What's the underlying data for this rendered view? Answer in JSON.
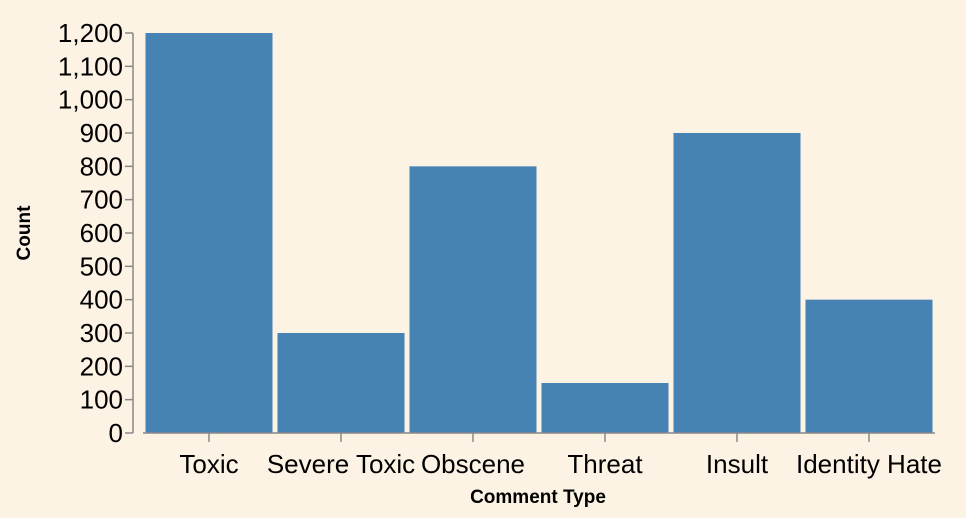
{
  "background": "#fdf3e5",
  "bar_color": "#4682b4",
  "axis_color": "#888888",
  "chart_data": {
    "type": "bar",
    "categories": [
      "Toxic",
      "Severe Toxic",
      "Obscene",
      "Threat",
      "Insult",
      "Identity Hate"
    ],
    "values": [
      1200,
      300,
      800,
      150,
      900,
      400
    ],
    "xlabel": "Comment Type",
    "ylabel": "Count",
    "ylim": [
      0,
      1200
    ],
    "yticks": [
      "0",
      "100",
      "200",
      "300",
      "400",
      "500",
      "600",
      "700",
      "800",
      "900",
      "1,000",
      "1,100",
      "1,200"
    ],
    "grid": false,
    "legend": "none"
  }
}
